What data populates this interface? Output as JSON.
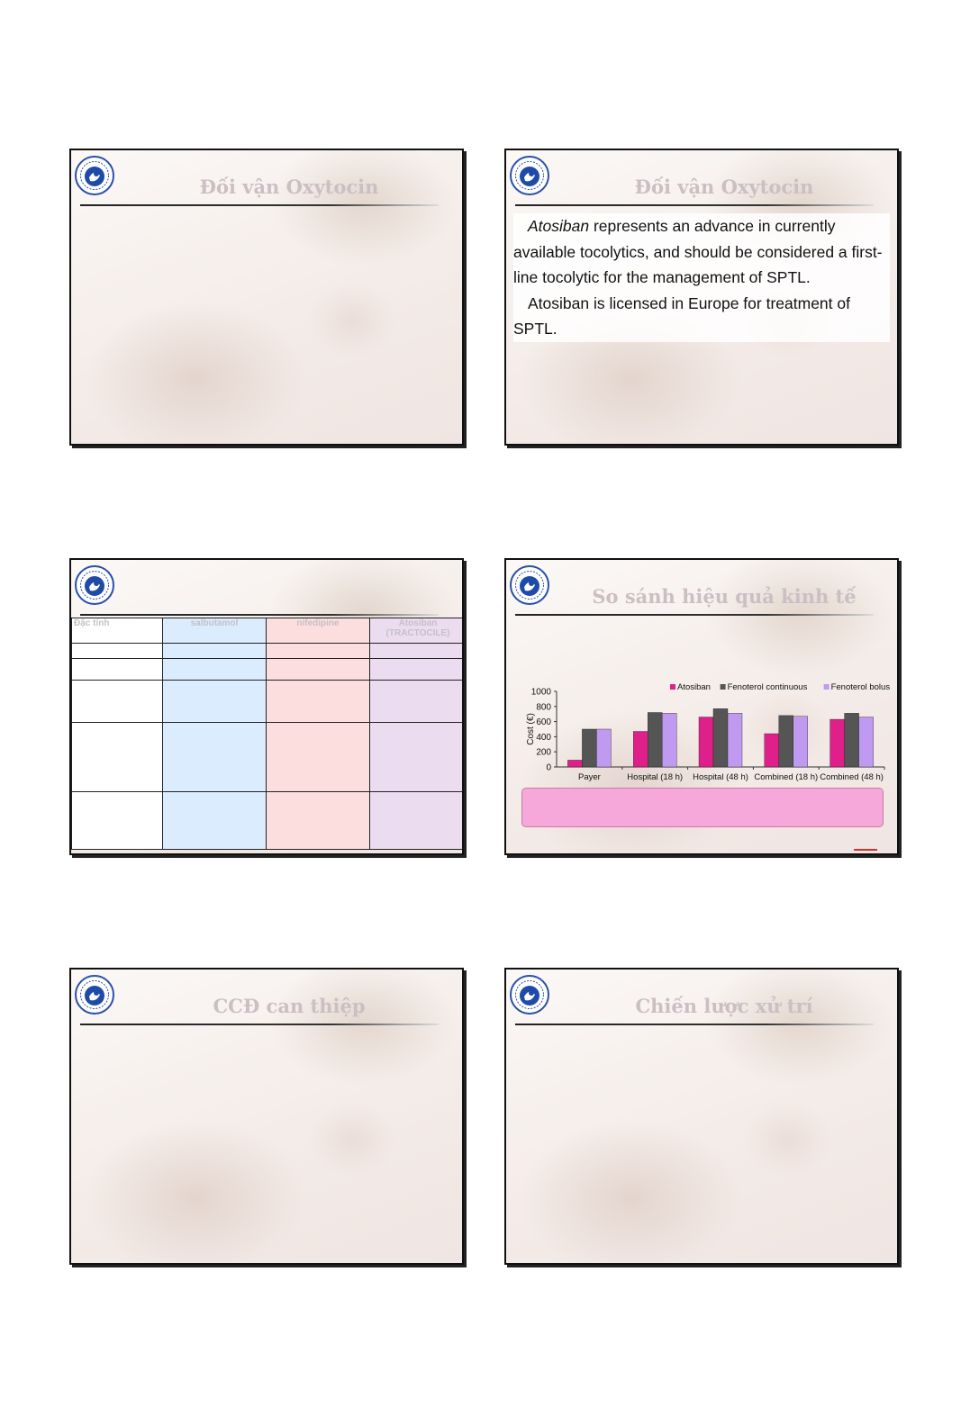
{
  "slides": [
    {
      "title": "Đối vận Oxytocin"
    },
    {
      "title": "Đối vận Oxytocin",
      "p1_em": "Atosiban",
      "p1_rest": " represents an advance in currently available tocolytics, and should be considered a first-line tocolytic for the management of SPTL.",
      "p2": "Atosiban is licensed in Europe for treatment of SPTL."
    },
    {
      "title": "",
      "table": {
        "headers": [
          "Đặc tính",
          "salbutamol",
          "nifedipine",
          "Atosiban (TRACTOCILE)"
        ]
      }
    },
    {
      "title": "So sánh hiệu quả kinh tế"
    },
    {
      "title": "CCĐ can thiệp"
    },
    {
      "title": "Chiến lược xử trí"
    }
  ],
  "chart_data": {
    "type": "bar",
    "categories": [
      "Payer",
      "Hospital (18 h)",
      "Hospital (48 h)",
      "Combined (18 h)",
      "Combined (48 h)"
    ],
    "series": [
      {
        "name": "Atosiban",
        "values": [
          90,
          470,
          660,
          440,
          630
        ],
        "color": "#e0208a"
      },
      {
        "name": "Fenoterol continuous",
        "values": [
          500,
          720,
          770,
          680,
          710
        ],
        "color": "#555555"
      },
      {
        "name": "Fenoterol  bolus",
        "values": [
          500,
          710,
          710,
          670,
          660
        ],
        "color": "#c09af0"
      }
    ],
    "ylabel": "Cost (€)",
    "ylim": [
      0,
      1000
    ],
    "yticks": [
      "0",
      "200",
      "400",
      "600",
      "800",
      "1000"
    ],
    "legend": "top-right"
  }
}
